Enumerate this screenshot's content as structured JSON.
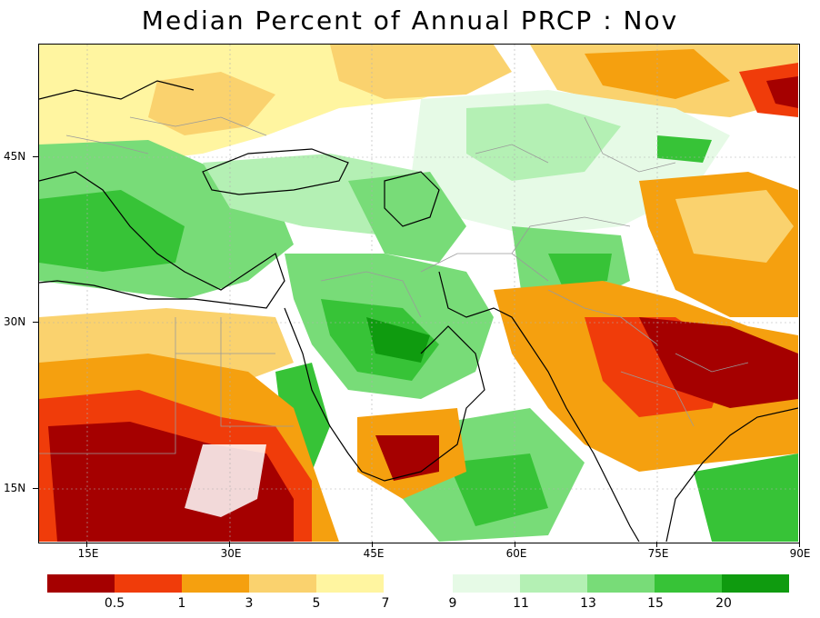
{
  "title": "Median Percent of Annual PRCP :   Nov",
  "axes": {
    "x_ticks": [
      "15E",
      "30E",
      "45E",
      "60E",
      "75E",
      "90E"
    ],
    "y_ticks": [
      "45N",
      "30N",
      "15N"
    ]
  },
  "legend": {
    "dry_colors": [
      "#a50000",
      "#f03c0a",
      "#f5a00f",
      "#fad26e",
      "#fff5a0"
    ],
    "wet_colors": [
      "#e6fae6",
      "#b4f0b4",
      "#78dc78",
      "#37c337",
      "#0f9b0f"
    ],
    "dry_labels": [
      "0.5",
      "1",
      "3",
      "5",
      "7"
    ],
    "wet_labels": [
      "9",
      "11",
      "13",
      "15",
      "20"
    ]
  },
  "colors": {
    "very_dry": "#a50000",
    "dry": "#f03c0a",
    "moderate_dry": "#f5a00f",
    "light_dry": "#fad26e",
    "pale_dry": "#fff5a0",
    "pale_wet": "#e6fae6",
    "light_wet": "#b4f0b4",
    "moderate_wet": "#78dc78",
    "wet": "#37c337",
    "very_wet": "#0f9b0f",
    "borders": "#a0a0a0",
    "coast": "#000000"
  }
}
